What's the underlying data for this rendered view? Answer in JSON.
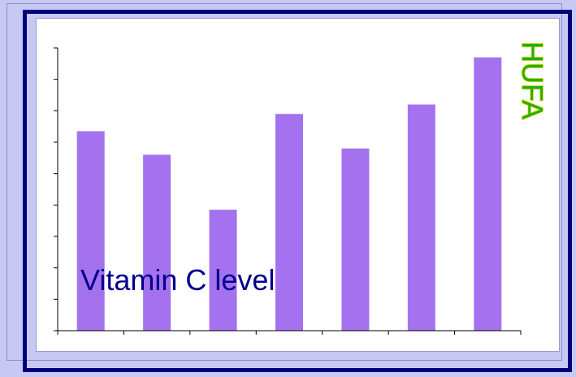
{
  "chart_data": {
    "type": "bar",
    "title": "",
    "ylabel": "",
    "xlabel": "",
    "annotation": "Vitamin C level",
    "vertical_label": "HUFA",
    "categories": [
      "",
      "",
      "",
      "",
      "",
      "",
      ""
    ],
    "series": [
      {
        "values": [
          6.35,
          5.6,
          3.85,
          6.9,
          5.8,
          7.2,
          8.7
        ]
      }
    ],
    "ylim": [
      0,
      9
    ],
    "y_tick_count": 10,
    "grid": false,
    "legend": "none",
    "colors": {
      "bar": "#a472ee",
      "annotation": "#000090",
      "vertical_label_fill": "#22b014",
      "vertical_label_stroke": "#e0d400",
      "axis": "#000000"
    }
  }
}
